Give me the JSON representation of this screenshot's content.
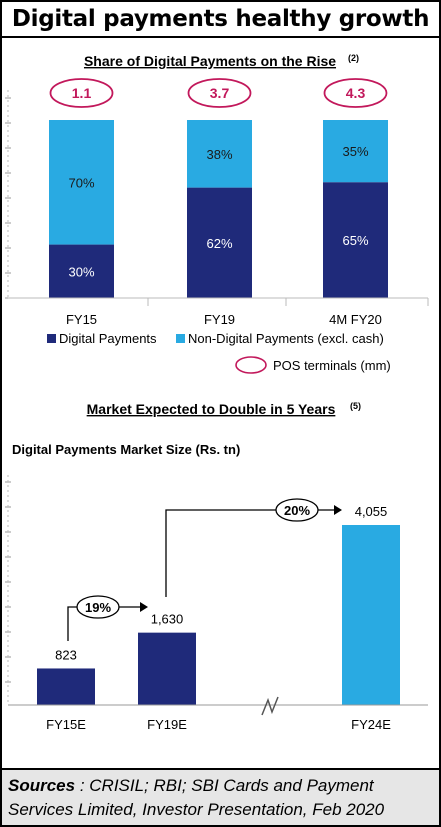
{
  "page_title": "Digital payments healthy growth",
  "colors": {
    "dark_navy": "#1f2a7a",
    "light_blue": "#29aae2",
    "pos_circle": "#c2185b",
    "sources_bg": "#e6e6e6"
  },
  "chart_data": [
    {
      "type": "bar",
      "stacked": true,
      "title": "Share of Digital Payments on the Rise",
      "title_note": "(2)",
      "categories": [
        "FY15",
        "FY19",
        "4M FY20"
      ],
      "unit": "%",
      "series": [
        {
          "name": "Digital Payments",
          "values": [
            30,
            62,
            65
          ],
          "labels": [
            "30%",
            "62%",
            "65%"
          ],
          "color": "#1f2a7a"
        },
        {
          "name": "Non-Digital Payments (excl. cash)",
          "values": [
            70,
            38,
            35
          ],
          "labels": [
            "70%",
            "38%",
            "35%"
          ],
          "color": "#29aae2"
        }
      ],
      "pos_terminals": {
        "name": "POS terminals (mm)",
        "values": [
          "1.1",
          "3.7",
          "4.3"
        ]
      },
      "ylim": [
        0,
        100
      ],
      "legend_position": "bottom"
    },
    {
      "type": "bar",
      "title": "Market Expected to Double in 5 Years",
      "title_note": "(5)",
      "ylabel": "Digital Payments Market Size (Rs. tn)",
      "categories": [
        "FY15E",
        "FY19E",
        "FY24E"
      ],
      "values": [
        823,
        1630,
        4055
      ],
      "value_labels": [
        "823",
        "1,630",
        "4,055"
      ],
      "growth_annotations": [
        {
          "from": "FY15E",
          "to": "FY19E",
          "label": "19%"
        },
        {
          "from": "FY19E",
          "to": "FY24E",
          "label": "20%"
        }
      ],
      "axis_break": true,
      "ylim": [
        0,
        4800
      ]
    }
  ],
  "sources": {
    "label": "Sources",
    "text": " : CRISIL; RBI; SBI Cards and Payment Services Limited, Investor Presentation, Feb 2020"
  }
}
